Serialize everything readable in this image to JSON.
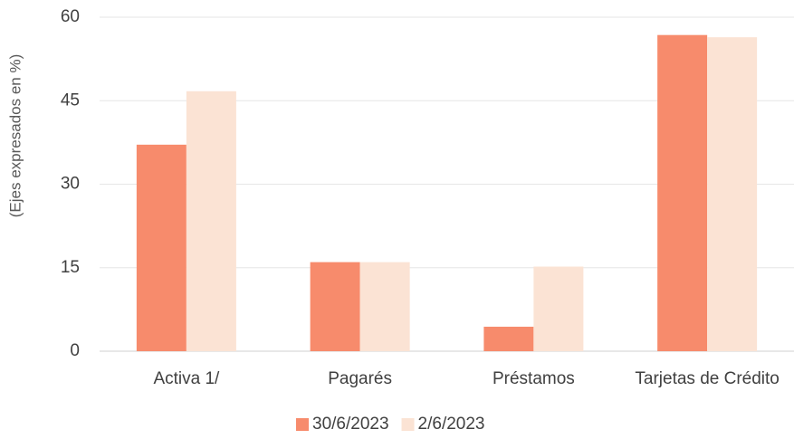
{
  "chart_data": {
    "type": "bar",
    "y_label": "(Ejes expresados en %)",
    "categories": [
      "Activa 1/",
      "Pagarés",
      "Préstamos",
      "Tarjetas de Crédito"
    ],
    "series": [
      {
        "name": "30/6/2023",
        "color": "#f78b6c",
        "values": [
          37.1,
          16,
          4.4,
          56.8
        ]
      },
      {
        "name": "2/6/2023",
        "color": "#fbe3d4",
        "values": [
          46.7,
          16,
          15.2,
          56.4
        ]
      }
    ],
    "ylim": [
      0,
      60
    ],
    "yticks": [
      0,
      15,
      30,
      45,
      60
    ],
    "grid": true,
    "legend": "bottom"
  }
}
